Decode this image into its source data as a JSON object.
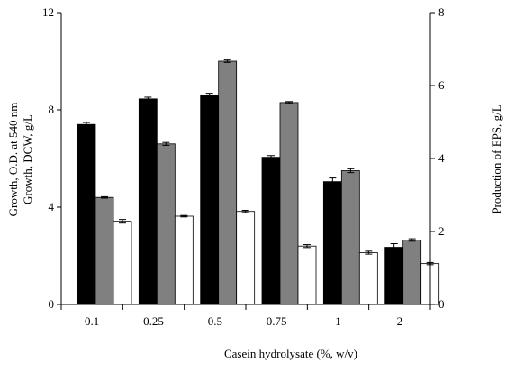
{
  "chart_data": {
    "type": "bar",
    "categories": [
      "0.1",
      "0.25",
      "0.5",
      "0.75",
      "1",
      "2"
    ],
    "xlabel": "Casein hydrolysate (%, w/v)",
    "ylabel_left_line1": "Growth, O.D. at 540 nm",
    "ylabel_left_line2": "Growth, DCW, g/L",
    "ylabel_right": "Production of EPS, g/L",
    "ylim_left": [
      0,
      12
    ],
    "yticks_left": [
      "0",
      "4",
      "8",
      "12"
    ],
    "ylim_right": [
      0,
      8
    ],
    "yticks_right": [
      "0",
      "2",
      "4",
      "6",
      "8"
    ],
    "grid": false,
    "legend": "none",
    "series": [
      {
        "axis": "left",
        "color": "#000000",
        "values": [
          7.4,
          8.45,
          8.6,
          6.05,
          5.05,
          2.35
        ],
        "errors": [
          0.08,
          0.07,
          0.08,
          0.07,
          0.15,
          0.15
        ]
      },
      {
        "axis": "left",
        "color": "#808080",
        "values": [
          4.4,
          6.6,
          10.0,
          8.3,
          5.5,
          2.65
        ],
        "errors": [
          0.03,
          0.06,
          0.05,
          0.04,
          0.08,
          0.05
        ]
      },
      {
        "axis": "right",
        "color": "#ffffff",
        "values": [
          2.28,
          2.42,
          2.55,
          1.6,
          1.42,
          1.12
        ],
        "errors": [
          0.05,
          0.02,
          0.03,
          0.04,
          0.04,
          0.03
        ]
      }
    ]
  }
}
